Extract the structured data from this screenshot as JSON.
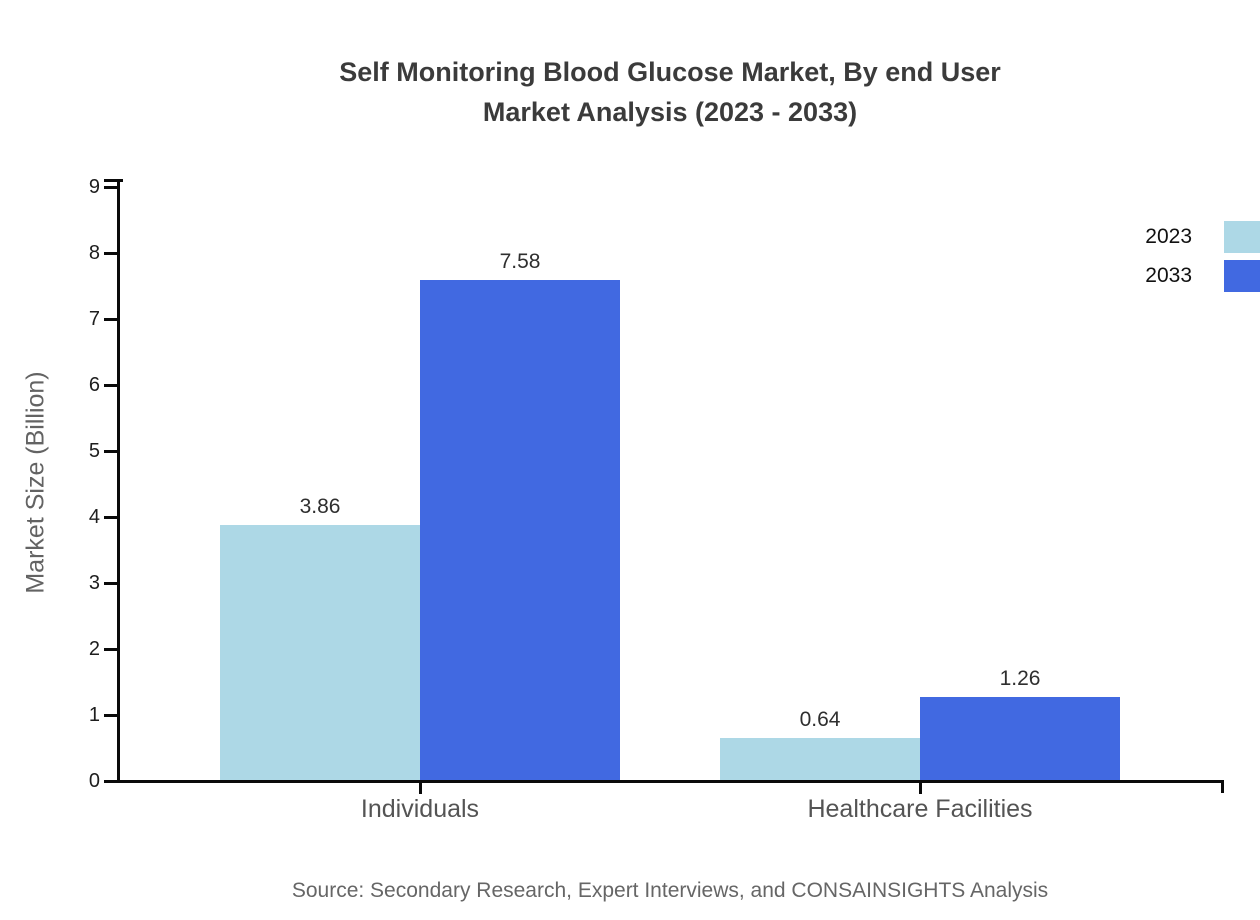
{
  "chart": {
    "title_lines": [
      "Self Monitoring Blood Glucose Market, By end User",
      "Market Analysis (2023 - 2033)"
    ],
    "source": "Source: Secondary Research, Expert Interviews, and CONSAINSIGHTS Analysis"
  },
  "chart_data": {
    "type": "bar",
    "title": "Self Monitoring Blood Glucose Market, By end User Market Analysis (2023 - 2033)",
    "categories": [
      "Individuals",
      "Healthcare Facilities"
    ],
    "series": [
      {
        "name": "2023",
        "values": [
          3.86,
          0.64
        ],
        "color": "#ADD8E6"
      },
      {
        "name": "2033",
        "values": [
          7.58,
          1.26
        ],
        "color": "#4169E1"
      }
    ],
    "xlabel": "",
    "ylabel": "Market Size (Billion)",
    "ylim": [
      0,
      9
    ],
    "yticks": [
      0,
      1,
      2,
      3,
      4,
      5,
      6,
      7,
      8,
      9
    ],
    "grid": false,
    "legend_position": "top-right",
    "value_labels": true,
    "value_label_format": "2dp"
  }
}
